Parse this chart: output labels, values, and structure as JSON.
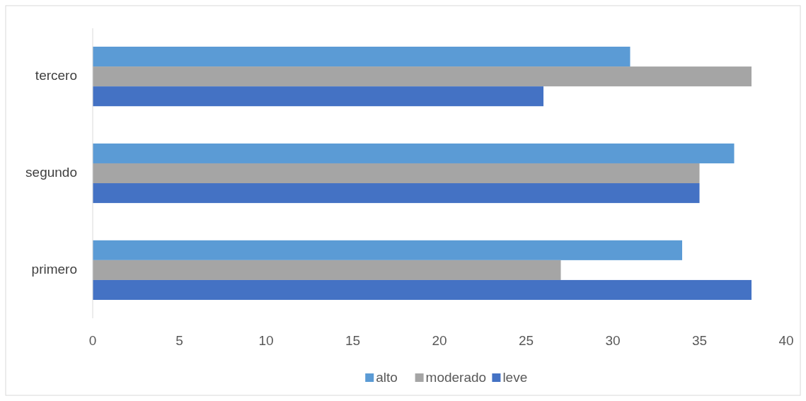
{
  "chart_data": {
    "type": "bar",
    "orientation": "horizontal",
    "categories": [
      "tercero",
      "segundo",
      "primero"
    ],
    "series": [
      {
        "name": "alto",
        "color": "#5b9bd5",
        "values": [
          31,
          37,
          34
        ]
      },
      {
        "name": "moderado",
        "color": "#a5a5a5",
        "values": [
          38,
          35,
          27
        ]
      },
      {
        "name": "leve",
        "color": "#4472c4",
        "values": [
          26,
          35,
          38
        ]
      }
    ],
    "xlim": [
      0,
      40
    ],
    "xticks": [
      0,
      5,
      10,
      15,
      20,
      25,
      30,
      35,
      40
    ],
    "grid": false,
    "legend": "bottom"
  }
}
